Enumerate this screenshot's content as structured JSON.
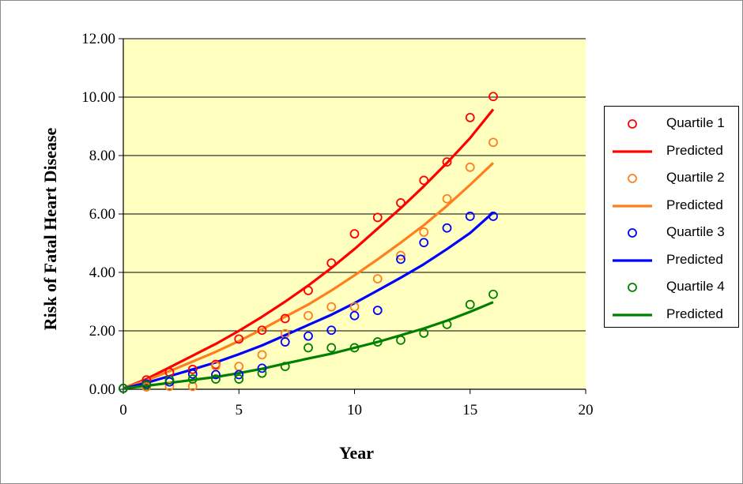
{
  "chart_data": {
    "type": "scatter",
    "title": "",
    "xlabel": "Year",
    "ylabel": "Risk of Fatal Heart Disease",
    "xlim": [
      0,
      20
    ],
    "ylim": [
      0,
      12
    ],
    "xticks": [
      "0",
      "5",
      "10",
      "15",
      "20"
    ],
    "yticks": [
      "0.00",
      "2.00",
      "4.00",
      "6.00",
      "8.00",
      "10.00",
      "12.00"
    ],
    "plot_background": "#ffffc0",
    "grid": "horizontal",
    "legend_position": "right",
    "series": [
      {
        "name": "Quartile 1",
        "kind": "points",
        "color": "#ff0000",
        "x": [
          0,
          1,
          2,
          3,
          4,
          5,
          6,
          7,
          8,
          9,
          10,
          11,
          12,
          13,
          14,
          15,
          16
        ],
        "y": [
          0.03,
          0.32,
          0.58,
          0.68,
          0.85,
          1.72,
          2.02,
          2.42,
          3.38,
          4.32,
          5.32,
          5.88,
          6.38,
          7.15,
          7.78,
          9.3,
          10.02
        ]
      },
      {
        "name": "Predicted",
        "kind": "line",
        "color": "#ff0000",
        "x": [
          0,
          1,
          2,
          3,
          4,
          5,
          6,
          7,
          8,
          9,
          10,
          11,
          12,
          13,
          14,
          15,
          16
        ],
        "y": [
          0.03,
          0.35,
          0.75,
          1.15,
          1.55,
          2.0,
          2.48,
          3.0,
          3.55,
          4.15,
          4.8,
          5.5,
          6.2,
          6.95,
          7.75,
          8.6,
          9.58
        ]
      },
      {
        "name": "Quartile 2",
        "kind": "points",
        "color": "#ff7f1f",
        "x": [
          0,
          1,
          2,
          3,
          4,
          5,
          6,
          7,
          8,
          9,
          10,
          11,
          12,
          13,
          14,
          15,
          16
        ],
        "y": [
          0.03,
          0.08,
          0.1,
          0.1,
          0.8,
          0.78,
          1.18,
          1.9,
          2.52,
          2.82,
          2.82,
          3.78,
          4.58,
          5.38,
          6.52,
          7.6,
          8.45
        ]
      },
      {
        "name": "Predicted",
        "kind": "line",
        "color": "#ff7f1f",
        "x": [
          0,
          1,
          2,
          3,
          4,
          5,
          6,
          7,
          8,
          9,
          10,
          11,
          12,
          13,
          14,
          15,
          16
        ],
        "y": [
          0.03,
          0.3,
          0.62,
          0.95,
          1.28,
          1.65,
          2.05,
          2.48,
          2.9,
          3.38,
          3.9,
          4.45,
          5.02,
          5.62,
          6.28,
          7.0,
          7.75
        ]
      },
      {
        "name": "Quartile 3",
        "kind": "points",
        "color": "#0000ff",
        "x": [
          0,
          1,
          2,
          3,
          4,
          5,
          6,
          7,
          8,
          9,
          10,
          11,
          12,
          13,
          14,
          15,
          16
        ],
        "y": [
          0.03,
          0.18,
          0.25,
          0.52,
          0.5,
          0.5,
          0.72,
          1.62,
          1.82,
          2.02,
          2.52,
          2.7,
          4.45,
          5.02,
          5.52,
          5.92,
          5.92
        ]
      },
      {
        "name": "Predicted",
        "kind": "line",
        "color": "#0000ff",
        "x": [
          0,
          1,
          2,
          3,
          4,
          5,
          6,
          7,
          8,
          9,
          10,
          11,
          12,
          13,
          14,
          15,
          16
        ],
        "y": [
          0.03,
          0.22,
          0.45,
          0.68,
          0.92,
          1.2,
          1.5,
          1.85,
          2.2,
          2.55,
          2.95,
          3.38,
          3.82,
          4.28,
          4.8,
          5.35,
          6.05
        ]
      },
      {
        "name": "Quartile 4",
        "kind": "points",
        "color": "#008000",
        "x": [
          0,
          1,
          2,
          3,
          4,
          5,
          6,
          7,
          8,
          9,
          10,
          11,
          12,
          13,
          14,
          15,
          16
        ],
        "y": [
          0.03,
          0.15,
          0.32,
          0.35,
          0.35,
          0.35,
          0.55,
          0.78,
          1.42,
          1.42,
          1.42,
          1.62,
          1.68,
          1.92,
          2.22,
          2.9,
          3.25
        ]
      },
      {
        "name": "Predicted",
        "kind": "line",
        "color": "#008000",
        "x": [
          0,
          1,
          2,
          3,
          4,
          5,
          6,
          7,
          8,
          9,
          10,
          11,
          12,
          13,
          14,
          15,
          16
        ],
        "y": [
          0.03,
          0.12,
          0.22,
          0.32,
          0.42,
          0.55,
          0.7,
          0.88,
          1.05,
          1.22,
          1.42,
          1.62,
          1.85,
          2.08,
          2.35,
          2.65,
          2.98
        ]
      }
    ]
  }
}
